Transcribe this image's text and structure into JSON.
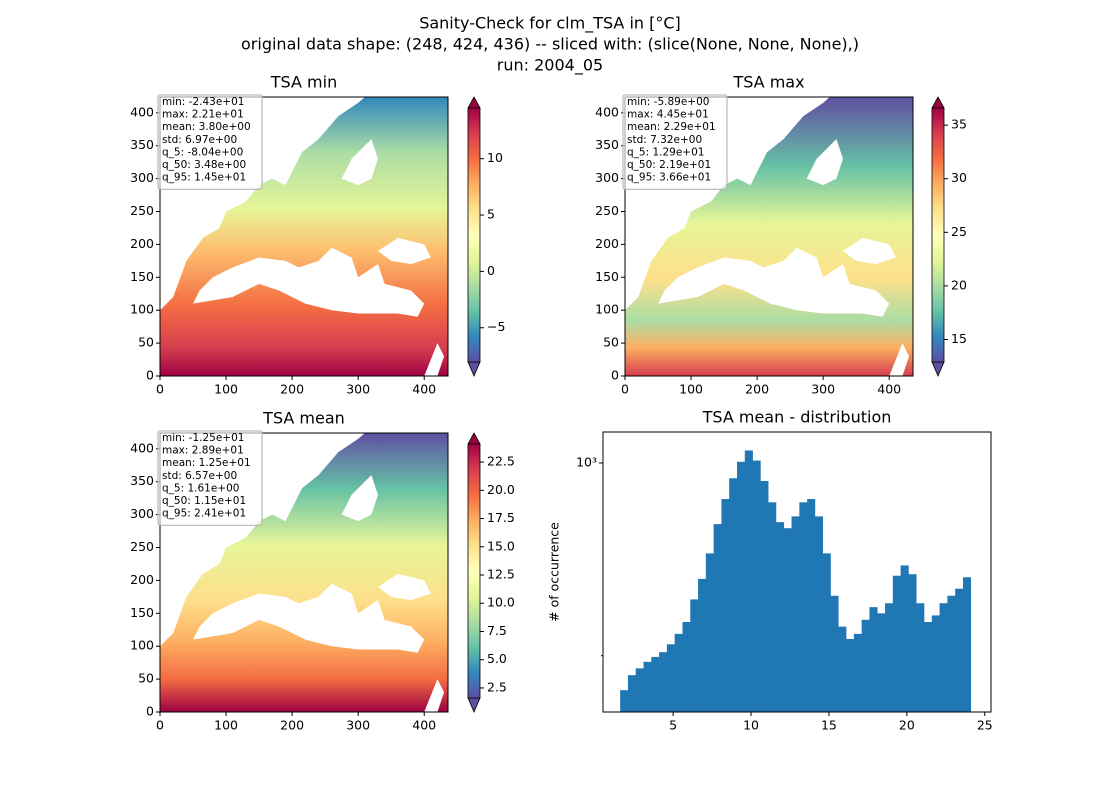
{
  "title_lines": [
    "Sanity-Check for clm_TSA in [°C]",
    "original data shape: (248, 424, 436) -- sliced with: (slice(None, None, None),)",
    "run: 2004_05"
  ],
  "chart_data": [
    {
      "type": "heatmap",
      "title": "TSA min",
      "xlim": [
        0,
        436
      ],
      "ylim": [
        0,
        424
      ],
      "xticks": [
        0,
        100,
        200,
        300,
        400
      ],
      "yticks": [
        0,
        50,
        100,
        150,
        200,
        250,
        300,
        350,
        400
      ],
      "clim": [
        -8.04,
        14.5
      ],
      "cticks": [
        {
          "value": -5,
          "label": "−5"
        },
        0,
        5,
        10
      ],
      "stats": [
        "min: -2.43e+01",
        "max: 2.21e+01",
        "mean: 3.80e+00",
        "std: 6.97e+00",
        "q_5: -8.04e+00",
        "q_50: 3.48e+00",
        "q_95: 1.45e+01"
      ]
    },
    {
      "type": "heatmap",
      "title": "TSA max",
      "xlim": [
        0,
        436
      ],
      "ylim": [
        0,
        424
      ],
      "xticks": [
        0,
        100,
        200,
        300,
        400
      ],
      "yticks": [
        0,
        50,
        100,
        150,
        200,
        250,
        300,
        350,
        400
      ],
      "clim": [
        12.9,
        36.6
      ],
      "cticks": [
        15,
        20,
        25,
        30,
        35
      ],
      "stats": [
        "min: -5.89e+00",
        "max: 4.45e+01",
        "mean: 2.29e+01",
        "std: 7.32e+00",
        "q_5: 1.29e+01",
        "q_50: 2.19e+01",
        "q_95: 3.66e+01"
      ]
    },
    {
      "type": "heatmap",
      "title": "TSA mean",
      "xlim": [
        0,
        436
      ],
      "ylim": [
        0,
        424
      ],
      "xticks": [
        0,
        100,
        200,
        300,
        400
      ],
      "yticks": [
        0,
        50,
        100,
        150,
        200,
        250,
        300,
        350,
        400
      ],
      "clim": [
        1.61,
        24.1
      ],
      "cticks": [
        2.5,
        {
          "value": 5,
          "label": "5.0"
        },
        7.5,
        {
          "value": 10,
          "label": "10.0"
        },
        12.5,
        {
          "value": 15,
          "label": "15.0"
        },
        17.5,
        {
          "value": 20,
          "label": "20.0"
        },
        22.5
      ],
      "stats": [
        "min: -1.25e+01",
        "max: 2.89e+01",
        "mean: 1.25e+01",
        "std: 6.57e+00",
        "q_5: 1.61e+00",
        "q_50: 1.15e+01",
        "q_95: 2.41e+01"
      ]
    },
    {
      "type": "histogram",
      "title": "TSA mean - distribution",
      "ylabel": "# of occurrence",
      "color": "#1f77b4",
      "log_y": true,
      "bins": [
        1.6,
        2.1,
        2.6,
        3.1,
        3.6,
        4.1,
        4.6,
        5.1,
        5.6,
        6.1,
        6.6,
        7.1,
        7.6,
        8.1,
        8.6,
        9.1,
        9.6,
        10.1,
        10.6,
        11.1,
        11.6,
        12.1,
        12.6,
        13.1,
        13.6,
        14.1,
        14.6,
        15.1,
        15.6,
        16.1,
        16.6,
        17.1,
        17.6,
        18.1,
        18.6,
        19.1,
        19.6,
        20.1,
        20.6,
        21.1,
        21.6,
        22.1,
        22.6,
        23.1,
        23.6,
        24.1
      ],
      "values": [
        150,
        170,
        180,
        190,
        198,
        206,
        220,
        240,
        265,
        320,
        380,
        470,
        600,
        740,
        880,
        1010,
        1110,
        1020,
        860,
        720,
        610,
        580,
        640,
        720,
        740,
        640,
        470,
        330,
        255,
        230,
        240,
        270,
        300,
        285,
        310,
        390,
        425,
        395,
        310,
        265,
        280,
        310,
        330,
        350,
        385
      ],
      "xlim": [
        0.5,
        25.4
      ],
      "xticks": [
        5,
        10,
        15,
        20,
        25
      ],
      "ylim": [
        125,
        1295
      ],
      "yticks": [
        {
          "value": 1000,
          "label": "10³"
        }
      ],
      "yminorticks": [
        200
      ]
    }
  ]
}
